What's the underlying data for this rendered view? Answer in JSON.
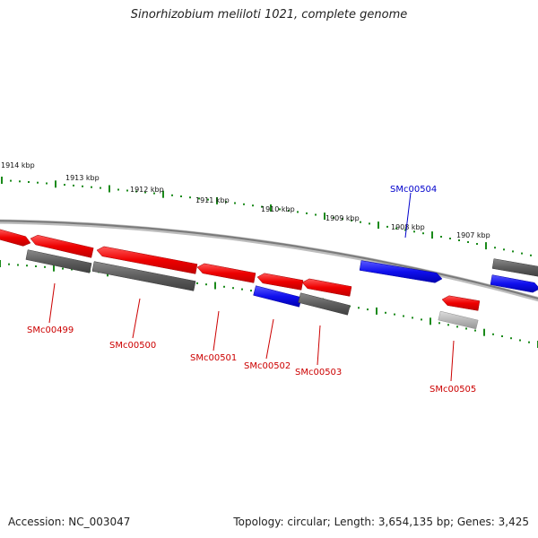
{
  "title": "Sinorhizobium meliloti 1021, complete genome",
  "accession": "Accession: NC_003047",
  "topology": "Topology: circular; Length: 3,654,135 bp; Genes: 3,425",
  "colors": {
    "forward": "#ee0000",
    "reverse": "#1010ee",
    "other_dark": "#606060",
    "other_light": "#b8b8b8",
    "backbone": "#888888",
    "ticks": "#1a8a1a",
    "label_red": "#cc0000",
    "label_blue": "#0000cc"
  },
  "scale_labels": [
    "1914 kbp",
    "1913 kbp",
    "1912 kbp",
    "1911 kbp",
    "1910 kbp",
    "1909 kbp",
    "1908 kbp",
    "1907 kbp"
  ],
  "gene_labels": [
    {
      "text": "SMc00499",
      "color": "red"
    },
    {
      "text": "SMc00500",
      "color": "red"
    },
    {
      "text": "SMc00501",
      "color": "red"
    },
    {
      "text": "SMc00502",
      "color": "red"
    },
    {
      "text": "SMc00503",
      "color": "red"
    },
    {
      "text": "SMc00504",
      "color": "blue"
    },
    {
      "text": "SMc00505",
      "color": "red"
    }
  ]
}
